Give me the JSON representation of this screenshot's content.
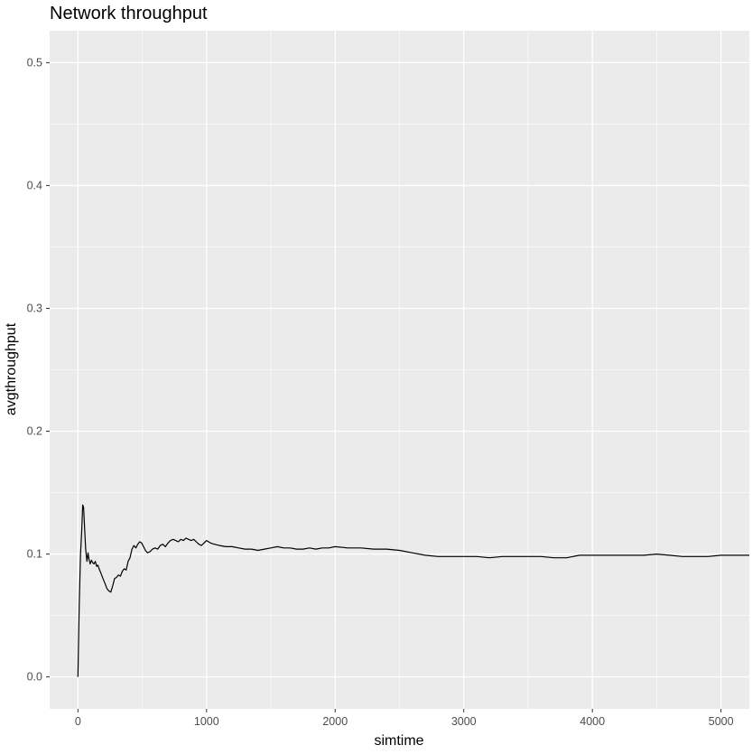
{
  "chart_data": {
    "type": "line",
    "title": "Network throughput",
    "xlabel": "simtime",
    "ylabel": "avgthroughput",
    "xlim": [
      -220,
      5220
    ],
    "ylim": [
      -0.026,
      0.526
    ],
    "x_ticks": [
      0,
      1000,
      2000,
      3000,
      4000,
      5000
    ],
    "x_tick_labels": [
      "0",
      "1000",
      "2000",
      "3000",
      "4000",
      "5000"
    ],
    "y_ticks": [
      0.0,
      0.1,
      0.2,
      0.3,
      0.4,
      0.5
    ],
    "y_tick_labels": [
      "0.0",
      "0.1",
      "0.2",
      "0.3",
      "0.4",
      "0.5"
    ],
    "grid": true,
    "background": "#ebebeb",
    "grid_color": "#ffffff",
    "line_color": "#000000",
    "series": [
      {
        "x": [
          0,
          10,
          20,
          30,
          37,
          44,
          52,
          60,
          70,
          78,
          85,
          95,
          105,
          115,
          125,
          135,
          145,
          155,
          165,
          180,
          195,
          210,
          225,
          240,
          255,
          270,
          285,
          300,
          315,
          330,
          345,
          360,
          375,
          390,
          405,
          420,
          435,
          450,
          465,
          480,
          495,
          510,
          525,
          540,
          560,
          580,
          600,
          620,
          640,
          660,
          680,
          700,
          720,
          740,
          760,
          780,
          800,
          820,
          840,
          860,
          880,
          900,
          920,
          940,
          960,
          980,
          1000,
          1030,
          1060,
          1100,
          1150,
          1200,
          1250,
          1300,
          1350,
          1400,
          1450,
          1500,
          1550,
          1600,
          1650,
          1700,
          1750,
          1800,
          1850,
          1900,
          1950,
          2000,
          2100,
          2200,
          2300,
          2400,
          2500,
          2600,
          2700,
          2800,
          2900,
          3000,
          3100,
          3200,
          3300,
          3400,
          3500,
          3600,
          3700,
          3800,
          3900,
          4000,
          4100,
          4200,
          4300,
          4400,
          4500,
          4600,
          4700,
          4800,
          4900,
          5000,
          5100,
          5220
        ],
        "y": [
          0.0,
          0.06,
          0.1,
          0.12,
          0.14,
          0.138,
          0.12,
          0.104,
          0.094,
          0.101,
          0.096,
          0.092,
          0.095,
          0.093,
          0.092,
          0.094,
          0.09,
          0.091,
          0.088,
          0.084,
          0.08,
          0.076,
          0.072,
          0.07,
          0.069,
          0.074,
          0.08,
          0.081,
          0.083,
          0.082,
          0.086,
          0.088,
          0.087,
          0.094,
          0.097,
          0.104,
          0.107,
          0.105,
          0.108,
          0.11,
          0.109,
          0.106,
          0.103,
          0.101,
          0.102,
          0.104,
          0.105,
          0.104,
          0.107,
          0.108,
          0.106,
          0.109,
          0.111,
          0.112,
          0.111,
          0.11,
          0.112,
          0.111,
          0.113,
          0.112,
          0.111,
          0.112,
          0.11,
          0.108,
          0.107,
          0.109,
          0.111,
          0.109,
          0.108,
          0.107,
          0.106,
          0.106,
          0.105,
          0.104,
          0.104,
          0.103,
          0.104,
          0.105,
          0.106,
          0.105,
          0.105,
          0.104,
          0.104,
          0.105,
          0.104,
          0.105,
          0.105,
          0.106,
          0.105,
          0.105,
          0.104,
          0.104,
          0.103,
          0.101,
          0.099,
          0.098,
          0.098,
          0.098,
          0.098,
          0.097,
          0.098,
          0.098,
          0.098,
          0.098,
          0.097,
          0.097,
          0.099,
          0.099,
          0.099,
          0.099,
          0.099,
          0.099,
          0.1,
          0.099,
          0.098,
          0.098,
          0.098,
          0.099,
          0.099,
          0.099
        ]
      }
    ]
  }
}
